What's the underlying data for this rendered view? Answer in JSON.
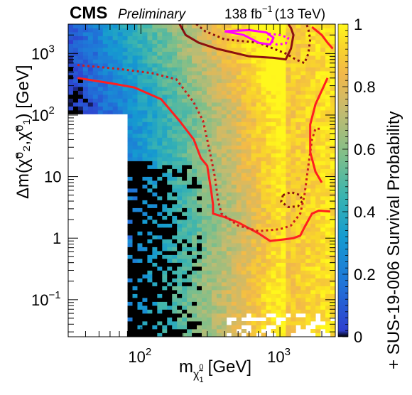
{
  "header": {
    "experiment": "CMS",
    "status": "Preliminary",
    "lumi": "138 fb",
    "lumi_exp": "−1",
    "energy": "(13 TeV)"
  },
  "chart_data": {
    "type": "heatmap",
    "xlabel": "m",
    "xlabel_sub": "χ̃",
    "xlabel_sub_sup": "0",
    "xlabel_sub_sub": "1",
    "xlabel_unit": "[GeV]",
    "ylabel": "Δm(χ̃⁰₂,χ̃⁰₁) [GeV]",
    "zlabel": "+ SUS-19-006 Survival Probability",
    "x_scale": "log",
    "y_scale": "log",
    "xlim": [
      30,
      2500
    ],
    "ylim": [
      0.025,
      3000
    ],
    "zlim": [
      0,
      1
    ],
    "x_ticks": [
      {
        "value": 100,
        "base": "10",
        "exp": "2"
      },
      {
        "value": 1000,
        "base": "10",
        "exp": "3"
      }
    ],
    "y_ticks": [
      {
        "value": 0.1,
        "label": "10",
        "exp": "−1"
      },
      {
        "value": 1,
        "label": "1",
        "exp": ""
      },
      {
        "value": 10,
        "label": "10",
        "exp": ""
      },
      {
        "value": 100,
        "label": "10",
        "exp": "2"
      },
      {
        "value": 1000,
        "label": "10",
        "exp": "3"
      }
    ],
    "z_ticks": [
      {
        "value": 0,
        "label": "0"
      },
      {
        "value": 0.2,
        "label": "0.2"
      },
      {
        "value": 0.4,
        "label": "0.4"
      },
      {
        "value": 0.6,
        "label": "0.6"
      },
      {
        "value": 0.8,
        "label": "0.8"
      },
      {
        "value": 1,
        "label": "1"
      }
    ],
    "colorscale": [
      "#000000",
      "#2f3fcf",
      "#1f78d8",
      "#159bd0",
      "#3ab4b0",
      "#7fbf8a",
      "#c3bb70",
      "#f2b84a",
      "#f9d62a",
      "#fff71c"
    ],
    "grid": "off",
    "contours": [
      {
        "name": "red-solid",
        "color": "#ff1e1e",
        "style": "solid",
        "points": [
          [
            35,
            400
          ],
          [
            60,
            330
          ],
          [
            90,
            280
          ],
          [
            140,
            180
          ],
          [
            190,
            80
          ],
          [
            240,
            40
          ],
          [
            270,
            20
          ],
          [
            300,
            15
          ],
          [
            320,
            6
          ],
          [
            330,
            3.5
          ],
          [
            330,
            2.5
          ],
          [
            400,
            2.2
          ],
          [
            500,
            1.8
          ],
          [
            700,
            1.2
          ],
          [
            850,
            0.9
          ],
          [
            1050,
            0.95
          ],
          [
            1250,
            1.0
          ],
          [
            1400,
            1.1
          ],
          [
            1500,
            1.5
          ],
          [
            1700,
            2.5
          ],
          [
            1900,
            2.8
          ],
          [
            2300,
            2.7
          ]
        ]
      },
      {
        "name": "red-dotted",
        "color": "#cc1e1e",
        "style": "dotted",
        "points": [
          [
            35,
            650
          ],
          [
            70,
            560
          ],
          [
            120,
            480
          ],
          [
            180,
            380
          ],
          [
            240,
            160
          ],
          [
            280,
            80
          ],
          [
            300,
            40
          ],
          [
            320,
            20
          ],
          [
            340,
            10
          ],
          [
            360,
            4
          ],
          [
            380,
            2.5
          ],
          [
            500,
            1.6
          ],
          [
            700,
            1.3
          ],
          [
            1000,
            1.4
          ],
          [
            1200,
            1.6
          ],
          [
            1400,
            2.5
          ],
          [
            1500,
            5
          ],
          [
            1600,
            15
          ],
          [
            1700,
            40
          ],
          [
            1800,
            60
          ],
          [
            2000,
            60
          ]
        ]
      },
      {
        "name": "red-solid-upper",
        "color": "#ff1e1e",
        "style": "solid",
        "points": [
          [
            1700,
            2700
          ],
          [
            2000,
            2000
          ],
          [
            2200,
            1500
          ],
          [
            2400,
            1200
          ]
        ]
      },
      {
        "name": "red-solid-right",
        "color": "#ff1e1e",
        "style": "solid",
        "points": [
          [
            2200,
            400
          ],
          [
            2000,
            250
          ],
          [
            1800,
            150
          ],
          [
            1650,
            70
          ],
          [
            1650,
            25
          ],
          [
            1800,
            12
          ],
          [
            2000,
            8
          ]
        ]
      },
      {
        "name": "darkred-solid",
        "color": "#8b1010",
        "style": "solid",
        "points": [
          [
            190,
            3000
          ],
          [
            210,
            2000
          ],
          [
            260,
            1500
          ],
          [
            350,
            1200
          ],
          [
            600,
            900
          ],
          [
            900,
            850
          ],
          [
            1100,
            800
          ],
          [
            1200,
            1200
          ],
          [
            1250,
            2000
          ],
          [
            1200,
            2600
          ],
          [
            1150,
            3000
          ]
        ]
      },
      {
        "name": "darkred-dotted",
        "color": "#8b1010",
        "style": "dotted",
        "points": [
          [
            250,
            3000
          ],
          [
            290,
            2300
          ],
          [
            400,
            1700
          ],
          [
            700,
            1500
          ],
          [
            900,
            1200
          ],
          [
            1100,
            1000
          ],
          [
            1300,
            800
          ],
          [
            1500,
            700
          ],
          [
            1600,
            1000
          ],
          [
            1650,
            1700
          ],
          [
            1600,
            2500
          ],
          [
            1550,
            3000
          ]
        ]
      },
      {
        "name": "darkred-dotted-island",
        "color": "#8b1010",
        "style": "dotted",
        "points": [
          [
            1050,
            5
          ],
          [
            1200,
            5.6
          ],
          [
            1400,
            5
          ],
          [
            1450,
            4
          ],
          [
            1350,
            3.3
          ],
          [
            1150,
            3.2
          ],
          [
            1020,
            3.9
          ],
          [
            1050,
            5
          ]
        ]
      },
      {
        "name": "magenta-solid",
        "color": "#ff00ff",
        "style": "solid",
        "points": [
          [
            400,
            2300
          ],
          [
            550,
            2000
          ],
          [
            700,
            1500
          ],
          [
            850,
            1400
          ],
          [
            900,
            1800
          ],
          [
            800,
            2200
          ],
          [
            600,
            2400
          ],
          [
            400,
            2300
          ]
        ]
      },
      {
        "name": "magenta-dotted",
        "color": "#ff00ff",
        "style": "dotted",
        "points": [
          [
            830,
            2100
          ],
          [
            1000,
            2000
          ],
          [
            1150,
            1800
          ],
          [
            1100,
            1450
          ],
          [
            950,
            1400
          ],
          [
            820,
            1700
          ],
          [
            830,
            2100
          ]
        ]
      }
    ]
  }
}
